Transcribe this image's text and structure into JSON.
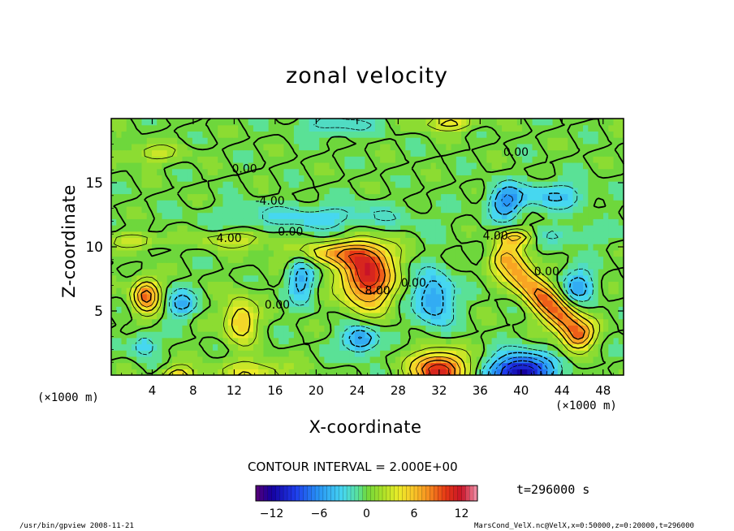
{
  "chart_data": {
    "type": "contour",
    "title": "zonal velocity",
    "xlabel": "X-coordinate",
    "ylabel": "Z-coordinate",
    "x_unit": "(×1000 m)",
    "y_unit": "(×1000 m)",
    "xlim": [
      0,
      50
    ],
    "ylim": [
      0,
      20
    ],
    "x_ticks": [
      4,
      8,
      12,
      16,
      20,
      24,
      28,
      32,
      36,
      40,
      44,
      48
    ],
    "y_ticks": [
      5,
      10,
      15
    ],
    "contour_interval": "CONTOUR INTERVAL = 2.000E+00",
    "contour_labels": [
      {
        "text": "0.00",
        "x": 13,
        "z": 16.1
      },
      {
        "text": "0.00",
        "x": 39.5,
        "z": 17.4
      },
      {
        "text": "-4.00",
        "x": 15.5,
        "z": 13.6
      },
      {
        "text": "0.00",
        "x": 17.5,
        "z": 11.2
      },
      {
        "text": "4.00",
        "x": 11.5,
        "z": 10.7
      },
      {
        "text": "4.00",
        "x": 37.5,
        "z": 10.9
      },
      {
        "text": "0.00",
        "x": 42.5,
        "z": 8.1
      },
      {
        "text": "8.00",
        "x": 26,
        "z": 6.6
      },
      {
        "text": "0.00",
        "x": 29.5,
        "z": 7.2
      },
      {
        "text": "0.00",
        "x": 16.2,
        "z": 5.5
      }
    ],
    "features": [
      {
        "x": 25.0,
        "z": 7.7,
        "value": 12,
        "rx": 2.4,
        "rz": 2.3
      },
      {
        "x": 21.8,
        "z": 9.5,
        "value": 6,
        "rx": 4.5,
        "rz": 0.9
      },
      {
        "x": 12.0,
        "z": 10.6,
        "value": 4,
        "rx": 3.5,
        "rz": 0.6
      },
      {
        "x": 3.4,
        "z": 6.2,
        "value": 9,
        "rx": 1.3,
        "rz": 1.3
      },
      {
        "x": 12.6,
        "z": 4.3,
        "value": 6,
        "rx": 1.6,
        "rz": 1.7
      },
      {
        "x": 32.0,
        "z": 0.4,
        "value": 12,
        "rx": 2.5,
        "rz": 1.4
      },
      {
        "x": 14.0,
        "z": 0.2,
        "value": 4,
        "rx": 3.5,
        "rz": 1.0
      },
      {
        "x": 6.5,
        "z": 0.0,
        "value": 6,
        "rx": 1.5,
        "rz": 0.7
      },
      {
        "x": 40.0,
        "z": 0.2,
        "value": -13,
        "rx": 2.8,
        "rz": 1.4
      },
      {
        "x": 31.5,
        "z": 6.0,
        "value": -6,
        "rx": 1.9,
        "rz": 2.1
      },
      {
        "x": 18.5,
        "z": 7.6,
        "value": -5,
        "rx": 1.3,
        "rz": 1.9
      },
      {
        "x": 6.8,
        "z": 5.6,
        "value": -5,
        "rx": 1.5,
        "rz": 1.0
      },
      {
        "x": 24.3,
        "z": 2.8,
        "value": -7,
        "rx": 1.6,
        "rz": 1.0
      },
      {
        "x": 3.2,
        "z": 2.4,
        "value": -4,
        "rx": 1.2,
        "rz": 0.9
      },
      {
        "x": 45.5,
        "z": 7.0,
        "value": -5,
        "rx": 1.6,
        "rz": 1.4
      },
      {
        "x": 38.5,
        "z": 13.5,
        "value": -6,
        "rx": 1.6,
        "rz": 1.3
      },
      {
        "x": 43.0,
        "z": 14.0,
        "value": -4,
        "rx": 3.5,
        "rz": 1.0
      },
      {
        "x": 20.0,
        "z": 12.3,
        "value": -3,
        "rx": 9.0,
        "rz": 1.0
      },
      {
        "x": 44.0,
        "z": 11.0,
        "value": -2,
        "rx": 5.0,
        "rz": 0.7
      },
      {
        "x": 22.0,
        "z": 19.5,
        "value": -3,
        "rx": 3.5,
        "rz": 0.8
      },
      {
        "x": 4.0,
        "z": 17.3,
        "value": 3,
        "rx": 3.0,
        "rz": 0.7
      },
      {
        "x": 33.0,
        "z": 19.7,
        "value": 5,
        "rx": 2.5,
        "rz": 0.6
      },
      {
        "x": 39.5,
        "z": 10.8,
        "value": 7,
        "rx": 1.8,
        "rz": 0.6
      },
      {
        "x": 2.5,
        "z": 10.5,
        "value": 4,
        "rx": 2.5,
        "rz": 0.5
      }
    ],
    "ridge": {
      "from": [
        38.5,
        9.0
      ],
      "to": [
        45.5,
        3.3
      ],
      "value": 10,
      "width": 1.6
    },
    "colorbar": {
      "min": -14,
      "max": 14,
      "ticks": [
        -12,
        -6,
        0,
        6,
        12
      ],
      "tick_labels": [
        "−12",
        "−6",
        "0",
        "6",
        "12"
      ]
    }
  },
  "annotations": {
    "time": "t=296000 s",
    "footer_left": "/usr/bin/gpview  2008-11-21",
    "footer_right": "MarsCond_VelX.nc@VelX,x=0:50000,z=0:20000,t=296000"
  }
}
